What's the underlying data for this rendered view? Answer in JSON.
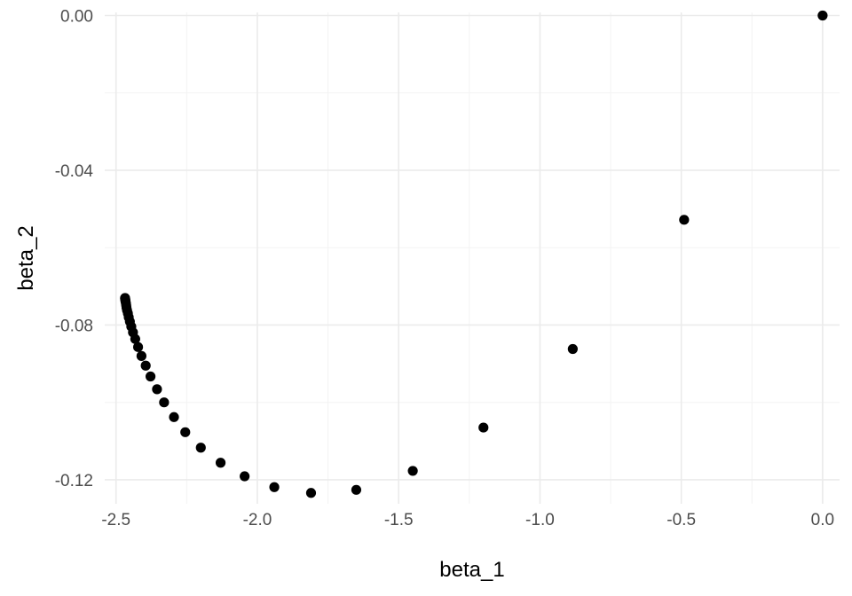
{
  "chart_data": {
    "type": "scatter",
    "title": "",
    "xlabel": "beta_1",
    "ylabel": "beta_2",
    "xlim": [
      -2.54,
      0.06
    ],
    "ylim": [
      -0.1262,
      0.0008
    ],
    "grid": true,
    "x_ticks": [
      -2.5,
      -2.0,
      -1.5,
      -1.0,
      -0.5,
      0.0
    ],
    "x_tick_labels": [
      "-2.5",
      "-2.0",
      "-1.5",
      "-1.0",
      "-0.5",
      "0.0"
    ],
    "x_minor_ticks": [
      -2.25,
      -1.75,
      -1.25,
      -0.75,
      -0.25
    ],
    "y_ticks": [
      0.0,
      -0.04,
      -0.08,
      -0.12
    ],
    "y_tick_labels": [
      "0.00",
      "-0.04",
      "-0.08",
      "-0.12"
    ],
    "y_minor_ticks": [
      -0.02,
      -0.06,
      -0.1
    ],
    "point_color": "#000000",
    "points": [
      {
        "x": 0.0,
        "y": 0.0
      },
      {
        "x": -0.49,
        "y": -0.0528
      },
      {
        "x": -0.884,
        "y": -0.0862
      },
      {
        "x": -1.2,
        "y": -0.1065
      },
      {
        "x": -1.45,
        "y": -0.1177
      },
      {
        "x": -1.65,
        "y": -0.1226
      },
      {
        "x": -1.81,
        "y": -0.1234
      },
      {
        "x": -1.94,
        "y": -0.1219
      },
      {
        "x": -2.045,
        "y": -0.1191
      },
      {
        "x": -2.13,
        "y": -0.1156
      },
      {
        "x": -2.2,
        "y": -0.1117
      },
      {
        "x": -2.255,
        "y": -0.1077
      },
      {
        "x": -2.295,
        "y": -0.1038
      },
      {
        "x": -2.33,
        "y": -0.1
      },
      {
        "x": -2.355,
        "y": -0.0966
      },
      {
        "x": -2.378,
        "y": -0.0933
      },
      {
        "x": -2.395,
        "y": -0.0905
      },
      {
        "x": -2.41,
        "y": -0.088
      },
      {
        "x": -2.422,
        "y": -0.0857
      },
      {
        "x": -2.432,
        "y": -0.0836
      },
      {
        "x": -2.44,
        "y": -0.0819
      },
      {
        "x": -2.446,
        "y": -0.0804
      },
      {
        "x": -2.451,
        "y": -0.0791
      },
      {
        "x": -2.455,
        "y": -0.078
      },
      {
        "x": -2.458,
        "y": -0.077
      },
      {
        "x": -2.461,
        "y": -0.0762
      },
      {
        "x": -2.463,
        "y": -0.0755
      },
      {
        "x": -2.464,
        "y": -0.0749
      },
      {
        "x": -2.465,
        "y": -0.0744
      },
      {
        "x": -2.466,
        "y": -0.074
      },
      {
        "x": -2.467,
        "y": -0.0737
      },
      {
        "x": -2.467,
        "y": -0.0734
      },
      {
        "x": -2.468,
        "y": -0.0732
      },
      {
        "x": -2.468,
        "y": -0.073
      }
    ]
  }
}
